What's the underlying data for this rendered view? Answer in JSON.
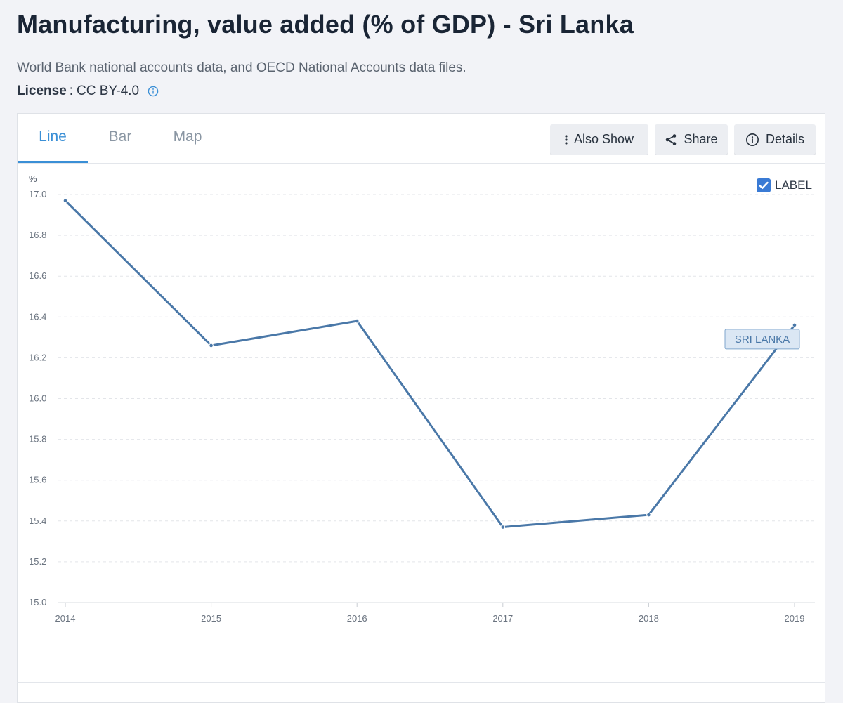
{
  "header": {
    "title": "Manufacturing, value added (% of GDP) - Sri Lanka",
    "source": "World Bank national accounts data, and OECD National Accounts data files.",
    "license_label": "License",
    "license_sep": ":",
    "license_value": "CC BY-4.0"
  },
  "tabs": [
    {
      "label": "Line"
    },
    {
      "label": "Bar"
    },
    {
      "label": "Map"
    }
  ],
  "toolbar": {
    "also_show": "Also Show",
    "share": "Share",
    "details": "Details"
  },
  "label_toggle": {
    "label": "LABEL",
    "checked": true
  },
  "colors": {
    "accent": "#3a8fd6",
    "line": "#4a78a8",
    "checkbox": "#3a7bd5"
  },
  "chart_data": {
    "type": "line",
    "title": "Manufacturing, value added (% of GDP) - Sri Lanka",
    "xlabel": "",
    "ylabel": "%",
    "x": [
      "2014",
      "2015",
      "2016",
      "2017",
      "2018",
      "2019"
    ],
    "series": [
      {
        "name": "SRI LANKA",
        "values": [
          16.97,
          16.26,
          16.38,
          15.37,
          15.43,
          16.36
        ]
      }
    ],
    "ylim": [
      15.0,
      17.0
    ],
    "yticks": [
      "15.0",
      "15.2",
      "15.4",
      "15.6",
      "15.8",
      "16.0",
      "16.2",
      "16.4",
      "16.6",
      "16.8",
      "17.0"
    ],
    "grid": true,
    "series_label": "SRI LANKA"
  }
}
